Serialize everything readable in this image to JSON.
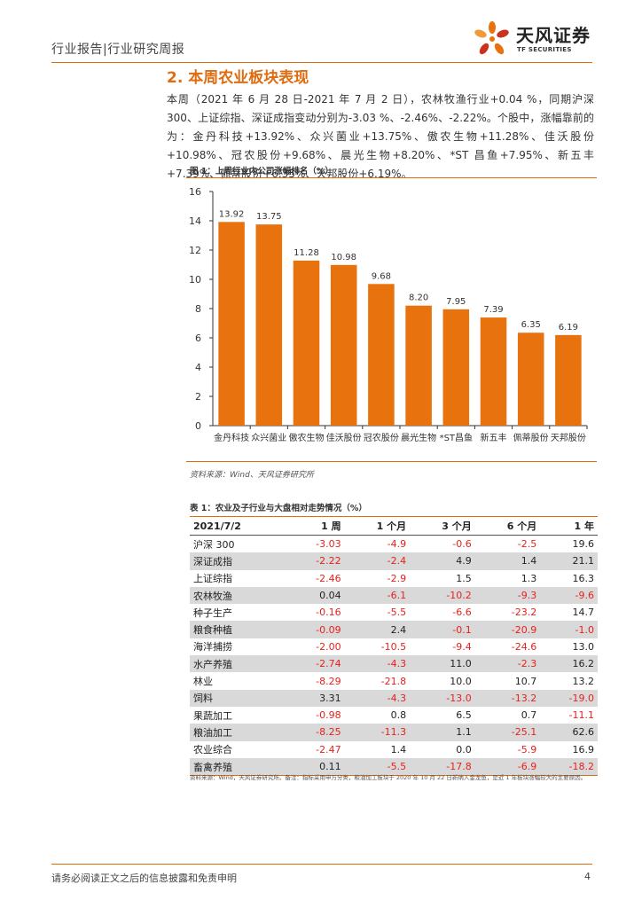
{
  "header": {
    "title": "行业报告|行业研究周报",
    "logo_name": "天风证券",
    "logo_sub": "TF SECURITIES"
  },
  "section": {
    "title": "2. 本周农业板块表现",
    "paragraph": "本周（2021 年 6 月 28 日-2021 年 7 月 2 日），农林牧渔行业+0.04 %，同期沪深 300、上证综指、深证成指变动分别为-3.03 %、-2.46%、-2.22%。个股中，涨幅靠前的为：金丹科技+13.92%、众兴菌业+13.75%、傲农生物+11.28%、佳沃股份+10.98%、冠农股份+9.68%、晨光生物+8.20%、*ST 昌鱼+7.95%、新五丰+7.39%、佩蒂股份+6.35%、天邦股份+6.19%。"
  },
  "figure": {
    "title": "图 1：上周行业内公司涨幅排名（%）",
    "source": "资料来源：Wind、天风证券研究所"
  },
  "chart_data": {
    "type": "bar",
    "title": "上周行业内公司涨幅排名（%）",
    "categories": [
      "金丹科技",
      "众兴菌业",
      "傲农生物",
      "佳沃股份",
      "冠农股份",
      "晨光生物",
      "*ST昌鱼",
      "新五丰",
      "佩蒂股份",
      "天邦股份"
    ],
    "values": [
      13.92,
      13.75,
      11.28,
      10.98,
      9.68,
      8.2,
      7.95,
      7.39,
      6.35,
      6.19
    ],
    "value_labels": [
      "13.92",
      "13.75",
      "11.28",
      "10.98",
      "9.68",
      "8.20",
      "7.95",
      "7.39",
      "6.35",
      "6.19"
    ],
    "yticks": [
      0,
      2,
      4,
      6,
      8,
      10,
      12,
      14,
      16
    ],
    "ylim": [
      0,
      16
    ],
    "bar_color": "#e8730e",
    "grid": false,
    "xlabel": "",
    "ylabel": ""
  },
  "table": {
    "title": "表 1：农业及子行业与大盘相对走势情况（%）",
    "headers": [
      "2021/7/2",
      "1 周",
      "1 个月",
      "3 个月",
      "6 个月",
      "1 年"
    ],
    "rows": [
      [
        "沪深 300",
        "-3.03",
        "-4.9",
        "-0.6",
        "-2.5",
        "19.6"
      ],
      [
        "深证成指",
        "-2.22",
        "-2.4",
        "4.9",
        "1.4",
        "21.1"
      ],
      [
        "上证综指",
        "-2.46",
        "-2.9",
        "1.5",
        "1.3",
        "16.3"
      ],
      [
        "农林牧渔",
        "0.04",
        "-6.1",
        "-10.2",
        "-9.3",
        "-9.6"
      ],
      [
        "种子生产",
        "-0.16",
        "-5.5",
        "-6.6",
        "-23.2",
        "14.7"
      ],
      [
        "粮食种植",
        "-0.09",
        "2.4",
        "-0.1",
        "-20.9",
        "-1.0"
      ],
      [
        "海洋捕捞",
        "-2.00",
        "-10.5",
        "-9.4",
        "-24.6",
        "13.0"
      ],
      [
        "水产养殖",
        "-2.74",
        "-4.3",
        "11.0",
        "-2.3",
        "16.2"
      ],
      [
        "林业",
        "-8.29",
        "-21.8",
        "10.0",
        "10.7",
        "13.2"
      ],
      [
        "饲料",
        "3.31",
        "-4.3",
        "-13.0",
        "-13.2",
        "-19.0"
      ],
      [
        "果蔬加工",
        "-0.98",
        "0.8",
        "6.5",
        "0.7",
        "-11.1"
      ],
      [
        "粮油加工",
        "-8.25",
        "-11.3",
        "1.1",
        "-25.1",
        "62.6"
      ],
      [
        "农业综合",
        "-2.47",
        "1.4",
        "0.0",
        "-5.9",
        "16.9"
      ],
      [
        "畜禽养殖",
        "0.11",
        "-5.5",
        "-17.8",
        "-6.9",
        "-18.2"
      ]
    ],
    "note": "资料来源：Wind，天风证券研究所。备注：指标采用申万分类，粮油加工板块于 2020 年 10 月 22 日新纳入金龙鱼，是近 1 年板块涨幅较大的主要原因。"
  },
  "footer": {
    "disclaimer": "请务必阅读正文之后的信息披露和免责申明",
    "page": "4"
  },
  "colors": {
    "accent": "#e06c10",
    "negative": "#e8211d",
    "row_alt": "#d9d9d9"
  }
}
